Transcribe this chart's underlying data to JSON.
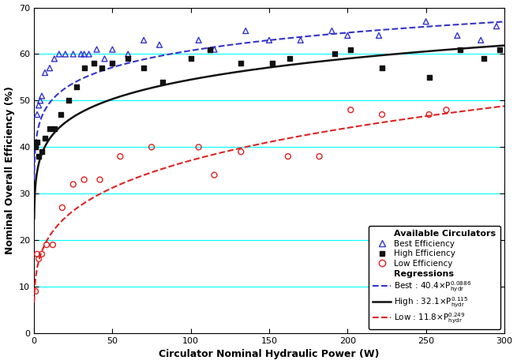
{
  "title": "",
  "xlabel": "Circulator Nominal Hydraulic Power (W)",
  "ylabel": "Nominal Overall Efficiency (%)",
  "xlim": [
    0,
    300
  ],
  "ylim": [
    0,
    70
  ],
  "yticks": [
    0,
    10,
    20,
    30,
    40,
    50,
    60,
    70
  ],
  "xticks": [
    0,
    50,
    100,
    150,
    200,
    250,
    300
  ],
  "hline_color": "#00FFFF",
  "hlines": [
    10,
    20,
    30,
    40,
    50,
    60
  ],
  "best_color": "#3333CC",
  "high_color": "#111111",
  "low_color": "#DD2222",
  "best_coeff": 40.4,
  "best_exp": 0.0886,
  "high_coeff": 32.1,
  "high_exp": 0.115,
  "low_coeff": 11.8,
  "low_exp": 0.249,
  "best_scatter_x": [
    2,
    3,
    4,
    5,
    7,
    10,
    13,
    16,
    20,
    25,
    30,
    32,
    35,
    40,
    45,
    50,
    60,
    70,
    80,
    105,
    115,
    135,
    150,
    170,
    190,
    200,
    220,
    250,
    270,
    285,
    295
  ],
  "best_scatter_y": [
    47,
    49,
    50,
    51,
    56,
    57,
    59,
    60,
    60,
    60,
    60,
    60,
    60,
    61,
    59,
    61,
    60,
    63,
    62,
    63,
    61,
    65,
    63,
    63,
    65,
    64,
    64,
    67,
    64,
    63,
    66
  ],
  "high_scatter_x": [
    1,
    2,
    3,
    5,
    7,
    10,
    13,
    17,
    22,
    27,
    32,
    38,
    43,
    50,
    60,
    70,
    82,
    100,
    112,
    132,
    152,
    163,
    192,
    202,
    222,
    252,
    272,
    287,
    297
  ],
  "high_scatter_y": [
    40,
    41,
    38,
    39,
    42,
    44,
    44,
    47,
    50,
    53,
    57,
    58,
    57,
    58,
    59,
    57,
    54,
    59,
    61,
    58,
    58,
    59,
    60,
    61,
    57,
    55,
    61,
    59,
    61
  ],
  "low_scatter_x": [
    1,
    2,
    3,
    5,
    8,
    12,
    18,
    25,
    32,
    42,
    55,
    75,
    105,
    115,
    132,
    162,
    182,
    202,
    222,
    252,
    263
  ],
  "low_scatter_y": [
    9,
    17,
    16,
    17,
    19,
    19,
    27,
    32,
    33,
    33,
    38,
    40,
    40,
    34,
    39,
    38,
    38,
    48,
    47,
    47,
    48
  ],
  "legend_title_circulators": "Available Circulators",
  "legend_title_regressions": "Regressions",
  "figsize": [
    6.55,
    4.61
  ],
  "dpi": 100
}
